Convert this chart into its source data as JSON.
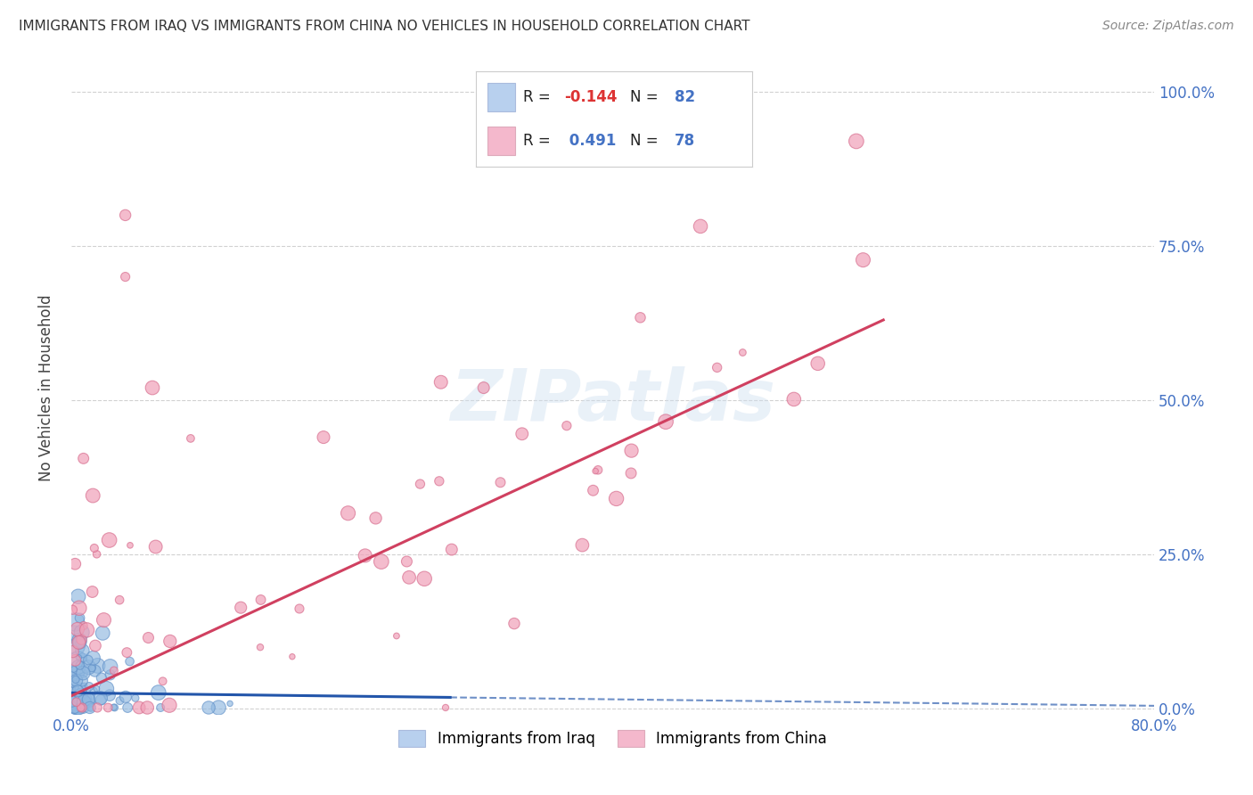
{
  "title": "IMMIGRANTS FROM IRAQ VS IMMIGRANTS FROM CHINA NO VEHICLES IN HOUSEHOLD CORRELATION CHART",
  "source": "Source: ZipAtlas.com",
  "ylabel": "No Vehicles in Household",
  "watermark": "ZIPatlas",
  "iraq_color": "#90b8e0",
  "iraq_edge_color": "#6090c8",
  "china_color": "#f0a0b8",
  "china_edge_color": "#d87090",
  "iraq_line_color": "#2255aa",
  "china_line_color": "#d04060",
  "background_color": "#ffffff",
  "grid_color": "#cccccc",
  "tick_color": "#4472c4",
  "xlim": [
    0.0,
    0.8
  ],
  "ylim": [
    -0.01,
    1.05
  ],
  "xticks": [
    0.0,
    0.8
  ],
  "xtick_labels": [
    "0.0%",
    "80.0%"
  ],
  "yticks": [
    0.0,
    0.25,
    0.5,
    0.75,
    1.0
  ],
  "ytick_labels_right": [
    "0.0%",
    "25.0%",
    "50.0%",
    "75.0%",
    "100.0%"
  ],
  "legend_iraq_color": "#b8d0ee",
  "legend_china_color": "#f4b8cc",
  "legend_R_iraq": "-0.144",
  "legend_N_iraq": "82",
  "legend_R_china": "0.491",
  "legend_N_china": "78",
  "legend_R_color_iraq": "#dd3333",
  "legend_R_color_china": "#4472c4",
  "legend_N_color": "#4472c4",
  "bottom_legend_iraq": "Immigrants from Iraq",
  "bottom_legend_china": "Immigrants from China",
  "iraq_line_solid_end": 0.28,
  "iraq_line_start_y": 0.025,
  "iraq_line_end_y": 0.004,
  "china_line_start_y": 0.02,
  "china_line_end_y": 0.63,
  "china_line_solid_end": 0.6
}
